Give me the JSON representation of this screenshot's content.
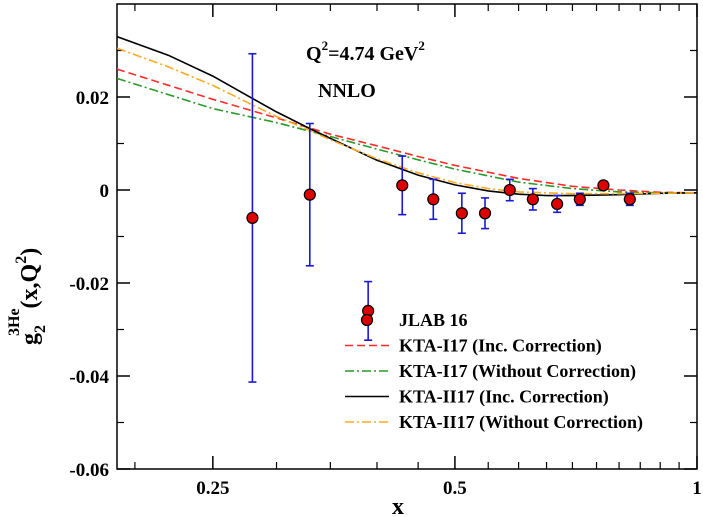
{
  "chart_data": {
    "type": "scatter",
    "xlabel": "x",
    "ylabel": {
      "base": "g",
      "sub": "2",
      "sup": "3He",
      "arg": "(x,Q",
      "arg_sup": "2",
      "arg_end": ")"
    },
    "xscale": "log",
    "xlim": [
      0.19,
      1.0
    ],
    "ylim": [
      -0.06,
      0.04
    ],
    "xticks": [
      {
        "value": 0.25,
        "label": "0.25"
      },
      {
        "value": 0.5,
        "label": "0.5"
      },
      {
        "value": 1.0,
        "label": "1"
      }
    ],
    "yticks": [
      {
        "value": -0.06,
        "label": "-0.06"
      },
      {
        "value": -0.04,
        "label": "-0.04"
      },
      {
        "value": -0.02,
        "label": "-0.02"
      },
      {
        "value": 0.0,
        "label": "0"
      },
      {
        "value": 0.02,
        "label": "0.02"
      }
    ],
    "annotations": [
      {
        "id": "q2",
        "text": "Q",
        "sup": "2",
        "rest": "=4.74 GeV",
        "sup2": "2"
      },
      {
        "id": "order",
        "text": "NNLO"
      }
    ],
    "legend_position": "bottom-right",
    "series": [
      {
        "name": "JLAB 16",
        "kind": "points",
        "color": "#dd0000",
        "edge": "#000000",
        "errcolor": "#1a1ad6",
        "x": [
          0.28,
          0.33,
          0.39,
          0.43,
          0.47,
          0.51,
          0.545,
          0.585,
          0.625,
          0.67,
          0.715,
          0.765,
          0.825
        ],
        "y": [
          -0.006,
          -0.001,
          -0.026,
          0.001,
          -0.002,
          -0.005,
          -0.005,
          0.0,
          -0.002,
          -0.003,
          -0.002,
          0.001,
          -0.002
        ],
        "err": [
          0.0353,
          0.0153,
          0.0063,
          0.0063,
          0.0043,
          0.0043,
          0.0033,
          0.0023,
          0.0023,
          0.0018,
          0.0013,
          0.0008,
          0.0013
        ]
      },
      {
        "name": "KTA-I17 (Inc. Correction)",
        "kind": "line",
        "dash": "dashed",
        "color": "#ff2a2a",
        "x": [
          0.19,
          0.25,
          0.3,
          0.35,
          0.4,
          0.45,
          0.5,
          0.6,
          0.7,
          0.8,
          0.9,
          1.0
        ],
        "y": [
          0.026,
          0.0195,
          0.0155,
          0.012,
          0.0095,
          0.0072,
          0.0053,
          0.0025,
          0.0008,
          0.0,
          -0.0005,
          -0.0006
        ]
      },
      {
        "name": "KTA-I17 (Without Correction)",
        "kind": "line",
        "dash": "dashdot",
        "color": "#2a9a2a",
        "x": [
          0.19,
          0.25,
          0.3,
          0.35,
          0.4,
          0.45,
          0.5,
          0.6,
          0.7,
          0.8,
          0.9,
          1.0
        ],
        "y": [
          0.024,
          0.0175,
          0.0145,
          0.0115,
          0.0088,
          0.0065,
          0.0045,
          0.0017,
          0.0003,
          -0.0004,
          -0.0006,
          -0.0006
        ]
      },
      {
        "name": "KTA-II17 (Inc. Correction)",
        "kind": "line",
        "dash": "solid",
        "color": "#000000",
        "x": [
          0.19,
          0.22,
          0.25,
          0.28,
          0.3,
          0.33,
          0.35,
          0.4,
          0.45,
          0.5,
          0.55,
          0.6,
          0.65,
          0.7,
          0.8,
          0.9,
          1.0
        ],
        "y": [
          0.033,
          0.029,
          0.0245,
          0.0197,
          0.0168,
          0.0132,
          0.0111,
          0.0064,
          0.0032,
          0.0011,
          -0.0002,
          -0.0009,
          -0.0012,
          -0.0012,
          -0.001,
          -0.0007,
          -0.0006
        ]
      },
      {
        "name": "KTA-II17 (Without Correction)",
        "kind": "line",
        "dash": "dashdot",
        "color": "#ffaa22",
        "x": [
          0.19,
          0.22,
          0.25,
          0.28,
          0.3,
          0.33,
          0.35,
          0.4,
          0.45,
          0.5,
          0.55,
          0.6,
          0.7,
          0.8,
          0.9,
          1.0
        ],
        "y": [
          0.0305,
          0.0265,
          0.0225,
          0.0183,
          0.0158,
          0.0128,
          0.0108,
          0.0067,
          0.0037,
          0.0016,
          0.0003,
          -0.0004,
          -0.0008,
          -0.0008,
          -0.0007,
          -0.0006
        ]
      }
    ]
  }
}
